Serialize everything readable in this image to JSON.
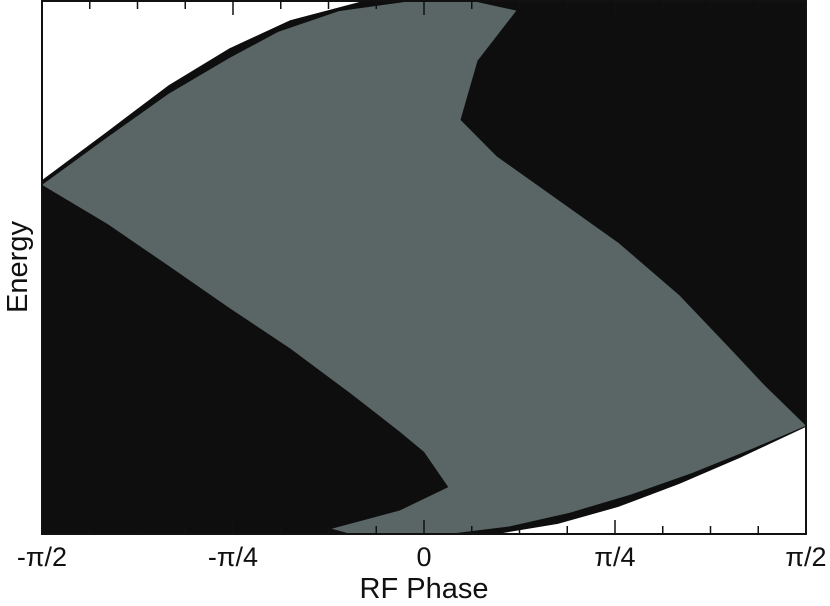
{
  "chart_data": {
    "type": "area",
    "xlabel": "RF Phase",
    "ylabel": "Energy",
    "x_range_rad": [
      -1.5708,
      1.5708
    ],
    "y_range": [
      0,
      1
    ],
    "x_tick_labels": [
      "-π/2",
      "-π/4",
      "0",
      "π/4",
      "π/2"
    ],
    "x_tick_values": [
      -1.5708,
      -0.7854,
      0,
      0.7854,
      1.5708
    ],
    "x_minor_ticks_per_major": 4,
    "y_ticks_labeled": false,
    "grid": false,
    "legend": "none",
    "bands": [
      {
        "fill": "#b0b8b7",
        "upper": [
          [
            -1.5708,
            0.641
          ],
          [
            -1.45,
            0.569
          ],
          [
            -1.25,
            0.467
          ],
          [
            -1.05,
            0.371
          ],
          [
            -0.8,
            0.293
          ],
          [
            -0.6,
            0.248
          ],
          [
            -0.42,
            0.203
          ],
          [
            -0.33,
            0.172
          ],
          [
            -0.28,
            0.122
          ],
          [
            -0.35,
            0.069
          ],
          [
            -0.55,
            0.032
          ],
          [
            -0.8,
            0.013
          ],
          [
            -1.05,
            0.004
          ],
          [
            -1.3,
            0.001
          ],
          [
            -1.5708,
            0.0
          ]
        ],
        "lower": [
          [
            -1.5708,
            0.049
          ],
          [
            -1.3,
            0.051
          ],
          [
            -1.05,
            0.057
          ],
          [
            -0.8,
            0.076
          ],
          [
            -0.6,
            0.107
          ],
          [
            -0.45,
            0.151
          ],
          [
            -0.38,
            0.192
          ],
          [
            -0.45,
            0.261
          ],
          [
            -0.6,
            0.325
          ],
          [
            -0.8,
            0.394
          ],
          [
            -1.05,
            0.463
          ],
          [
            -1.3,
            0.537
          ],
          [
            -1.5708,
            0.627
          ]
        ]
      },
      {
        "fill": "#b0b8b7",
        "upper": [
          [
            1.5708,
            0.239
          ],
          [
            1.45,
            0.298
          ],
          [
            1.25,
            0.399
          ],
          [
            1.05,
            0.499
          ],
          [
            0.8,
            0.592
          ],
          [
            0.55,
            0.666
          ],
          [
            0.33,
            0.741
          ],
          [
            0.22,
            0.799
          ],
          [
            0.28,
            0.888
          ],
          [
            0.4,
            0.923
          ],
          [
            0.6,
            0.958
          ],
          [
            0.8,
            0.976
          ],
          [
            1.05,
            0.989
          ],
          [
            1.3,
            0.996
          ],
          [
            1.5708,
            1.0
          ]
        ],
        "lower": [
          [
            1.5708,
            0.273
          ],
          [
            1.35,
            0.349
          ],
          [
            1.1,
            0.434
          ],
          [
            0.85,
            0.515
          ],
          [
            0.65,
            0.598
          ],
          [
            0.45,
            0.691
          ],
          [
            0.35,
            0.795
          ],
          [
            0.42,
            0.879
          ],
          [
            0.6,
            0.937
          ],
          [
            0.8,
            0.96
          ],
          [
            1.05,
            0.978
          ],
          [
            1.3,
            0.986
          ],
          [
            1.5708,
            0.989
          ]
        ]
      },
      {
        "fill": "#0e0e0e",
        "upper": [
          [
            -1.5708,
            0.664
          ],
          [
            -1.3,
            0.756
          ],
          [
            -1.05,
            0.842
          ],
          [
            -0.8,
            0.911
          ],
          [
            -0.55,
            0.964
          ],
          [
            -0.25,
            1.0
          ],
          [
            0.05,
            1.0
          ],
          [
            0.25,
            1.0
          ],
          [
            0.45,
            1.0
          ],
          [
            0.7,
            1.0
          ],
          [
            0.95,
            1.0
          ],
          [
            1.15,
            1.0
          ],
          [
            1.3,
            1.0
          ],
          [
            1.45,
            1.0
          ],
          [
            1.5708,
            1.0
          ]
        ],
        "lower": [
          [
            1.5708,
            0.201
          ],
          [
            1.3,
            0.143
          ],
          [
            1.05,
            0.094
          ],
          [
            0.8,
            0.051
          ],
          [
            0.55,
            0.019
          ],
          [
            0.3,
            0.0
          ],
          [
            -0.05,
            0.0
          ],
          [
            -0.25,
            0.0
          ],
          [
            -0.45,
            0.0
          ],
          [
            -0.7,
            0.0
          ],
          [
            -0.95,
            0.0
          ],
          [
            -1.15,
            0.0
          ],
          [
            -1.3,
            0.0
          ],
          [
            -1.45,
            0.0
          ],
          [
            -1.5708,
            0.0
          ]
        ]
      },
      {
        "fill": "#5a6565",
        "upper": [
          [
            -1.5708,
            0.655
          ],
          [
            -1.3,
            0.745
          ],
          [
            -1.05,
            0.826
          ],
          [
            -0.8,
            0.893
          ],
          [
            -0.6,
            0.942
          ],
          [
            -0.35,
            0.981
          ],
          [
            -0.05,
            1.0
          ],
          [
            0.2,
            1.0
          ],
          [
            0.38,
            0.982
          ],
          [
            0.22,
            0.888
          ],
          [
            0.15,
            0.777
          ],
          [
            0.3,
            0.708
          ],
          [
            0.55,
            0.627
          ],
          [
            0.8,
            0.546
          ],
          [
            1.05,
            0.448
          ],
          [
            1.25,
            0.352
          ],
          [
            1.4,
            0.279
          ],
          [
            1.5708,
            0.203
          ]
        ],
        "lower": [
          [
            1.5708,
            0.203
          ],
          [
            1.35,
            0.16
          ],
          [
            1.1,
            0.114
          ],
          [
            0.85,
            0.074
          ],
          [
            0.6,
            0.04
          ],
          [
            0.35,
            0.014
          ],
          [
            0.1,
            0.0
          ],
          [
            -0.1,
            0.0
          ],
          [
            -0.3,
            0.0
          ],
          [
            -0.38,
            0.01
          ],
          [
            -0.1,
            0.044
          ],
          [
            0.1,
            0.088
          ],
          [
            0.0,
            0.154
          ],
          [
            -0.1,
            0.192
          ],
          [
            -0.3,
            0.263
          ],
          [
            -0.55,
            0.348
          ],
          [
            -0.8,
            0.424
          ],
          [
            -1.05,
            0.503
          ],
          [
            -1.3,
            0.581
          ],
          [
            -1.5708,
            0.655
          ]
        ]
      }
    ]
  }
}
